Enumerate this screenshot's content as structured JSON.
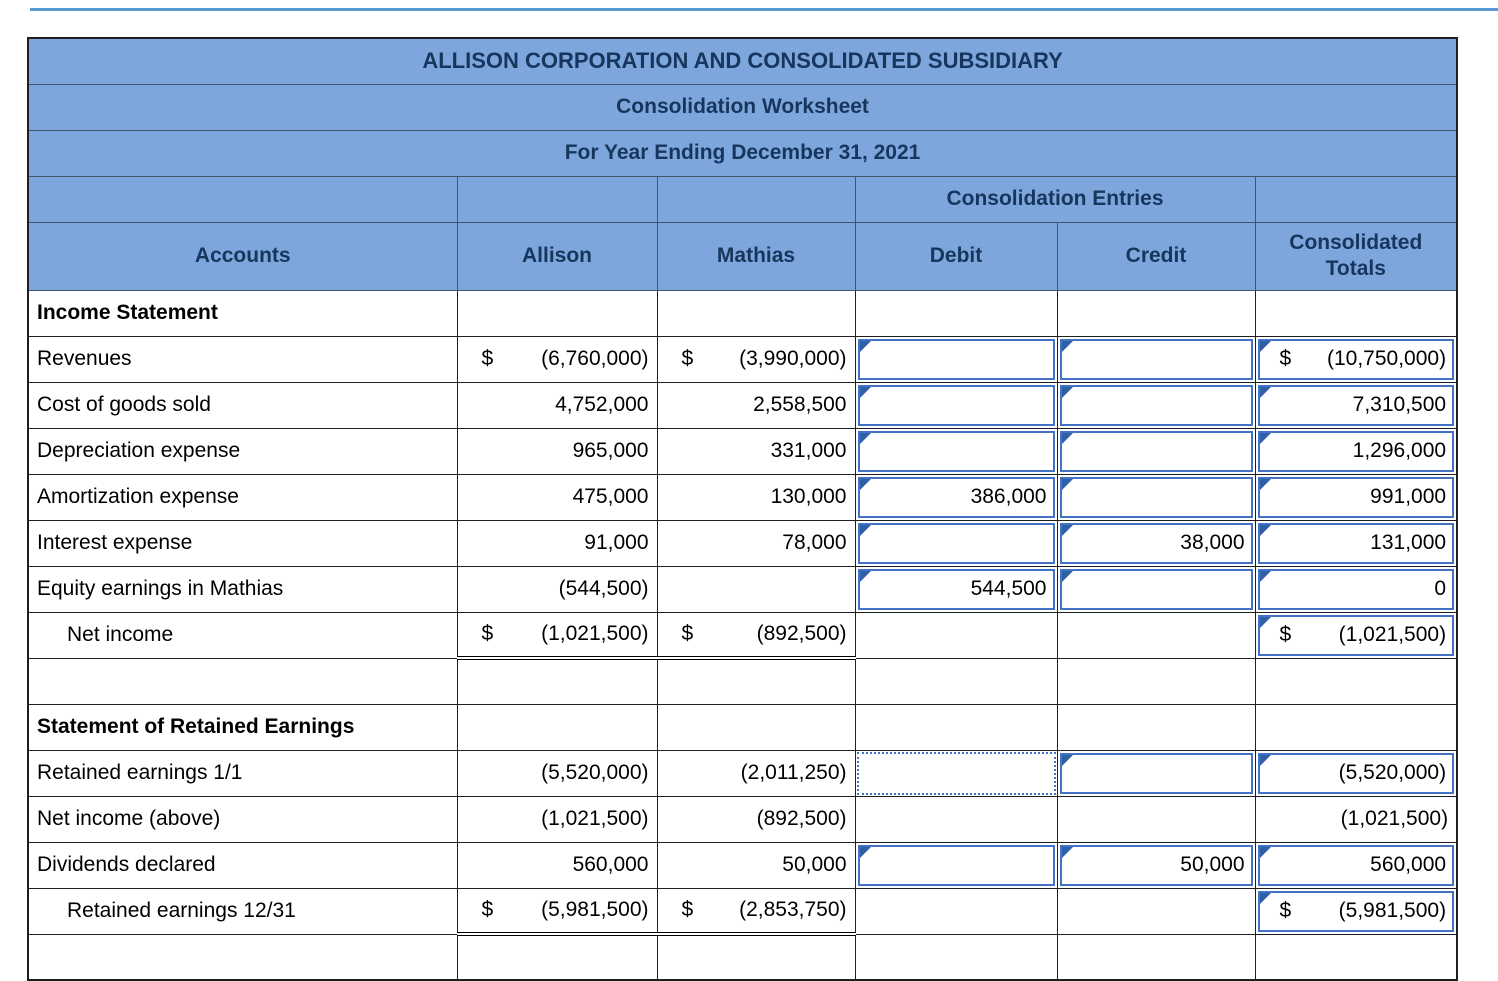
{
  "colors": {
    "header_bg": "#7DA7DC",
    "header_text": "#17365D",
    "input_border": "#4472C4",
    "answer_marker": "#2E5FA8",
    "selection_border": "#4472C4",
    "top_rule": "#5B9BD5"
  },
  "worksheet": {
    "title1": "ALLISON CORPORATION AND CONSOLIDATED SUBSIDIARY",
    "title2": "Consolidation Worksheet",
    "title3": "For Year Ending December 31, 2021",
    "entries_header": "Consolidation Entries",
    "columns": [
      "Accounts",
      "Allison",
      "Mathias",
      "Debit",
      "Credit",
      "Consolidated Totals"
    ],
    "rows": [
      {
        "type": "section",
        "account": "Income Statement",
        "cells": {}
      },
      {
        "type": "data",
        "account": "Revenues",
        "cells": {
          "allison": {
            "text": "(6,760,000)",
            "dollar": true
          },
          "mathias": {
            "text": "(3,990,000)",
            "dollar": true
          },
          "debit": {
            "input": true,
            "text": ""
          },
          "credit": {
            "input": true,
            "text": ""
          },
          "totals": {
            "input": true,
            "text": "(10,750,000)",
            "dollar": true
          }
        }
      },
      {
        "type": "data",
        "account": "Cost of goods sold",
        "cells": {
          "allison": {
            "text": "4,752,000"
          },
          "mathias": {
            "text": "2,558,500"
          },
          "debit": {
            "input": true,
            "text": ""
          },
          "credit": {
            "input": true,
            "text": ""
          },
          "totals": {
            "input": true,
            "text": "7,310,500"
          }
        }
      },
      {
        "type": "data",
        "account": "Depreciation expense",
        "cells": {
          "allison": {
            "text": "965,000"
          },
          "mathias": {
            "text": "331,000"
          },
          "debit": {
            "input": true,
            "text": ""
          },
          "credit": {
            "input": true,
            "text": ""
          },
          "totals": {
            "input": true,
            "text": "1,296,000"
          }
        }
      },
      {
        "type": "data",
        "account": "Amortization expense",
        "cells": {
          "allison": {
            "text": "475,000"
          },
          "mathias": {
            "text": "130,000"
          },
          "debit": {
            "input": true,
            "text": "386,000"
          },
          "credit": {
            "input": true,
            "text": ""
          },
          "totals": {
            "input": true,
            "text": "991,000"
          }
        }
      },
      {
        "type": "data",
        "account": "Interest expense",
        "cells": {
          "allison": {
            "text": "91,000"
          },
          "mathias": {
            "text": "78,000"
          },
          "debit": {
            "input": true,
            "text": ""
          },
          "credit": {
            "input": true,
            "text": "38,000"
          },
          "totals": {
            "input": true,
            "text": "131,000"
          }
        }
      },
      {
        "type": "data",
        "account": "Equity earnings in Mathias",
        "cells": {
          "allison": {
            "text": "(544,500)"
          },
          "mathias": {
            "text": ""
          },
          "debit": {
            "input": true,
            "text": "544,500"
          },
          "credit": {
            "input": true,
            "text": ""
          },
          "totals": {
            "input": true,
            "text": "0"
          }
        }
      },
      {
        "type": "data",
        "account": "Net income",
        "indent": true,
        "cells": {
          "allison": {
            "text": "(1,021,500)",
            "dollar": true,
            "dbl": true
          },
          "mathias": {
            "text": "(892,500)",
            "dollar": true,
            "dbl": true
          },
          "debit": {},
          "credit": {},
          "totals": {
            "input": true,
            "text": "(1,021,500)",
            "dollar": true
          }
        }
      },
      {
        "type": "blank",
        "account": "",
        "cells": {}
      },
      {
        "type": "section",
        "account": "Statement of Retained Earnings",
        "cells": {}
      },
      {
        "type": "data",
        "account": "Retained earnings 1/1",
        "cells": {
          "allison": {
            "text": "(5,520,000)"
          },
          "mathias": {
            "text": "(2,011,250)"
          },
          "debit": {
            "input": true,
            "text": "",
            "selected": true
          },
          "credit": {
            "input": true,
            "text": ""
          },
          "totals": {
            "input": true,
            "text": "(5,520,000)"
          }
        }
      },
      {
        "type": "data",
        "account": "Net income (above)",
        "cells": {
          "allison": {
            "text": "(1,021,500)"
          },
          "mathias": {
            "text": "(892,500)"
          },
          "debit": {},
          "credit": {},
          "totals": {
            "text": "(1,021,500)"
          }
        }
      },
      {
        "type": "data",
        "account": "Dividends declared",
        "cells": {
          "allison": {
            "text": "560,000"
          },
          "mathias": {
            "text": "50,000"
          },
          "debit": {
            "input": true,
            "text": ""
          },
          "credit": {
            "input": true,
            "text": "50,000"
          },
          "totals": {
            "input": true,
            "text": "560,000"
          }
        }
      },
      {
        "type": "data",
        "account": "Retained earnings 12/31",
        "indent": true,
        "cells": {
          "allison": {
            "text": "(5,981,500)",
            "dollar": true,
            "dbl": true
          },
          "mathias": {
            "text": "(2,853,750)",
            "dollar": true,
            "dbl": true
          },
          "debit": {},
          "credit": {},
          "totals": {
            "input": true,
            "text": "(5,981,500)",
            "dollar": true
          }
        }
      },
      {
        "type": "blank",
        "account": "",
        "cells": {}
      }
    ]
  }
}
